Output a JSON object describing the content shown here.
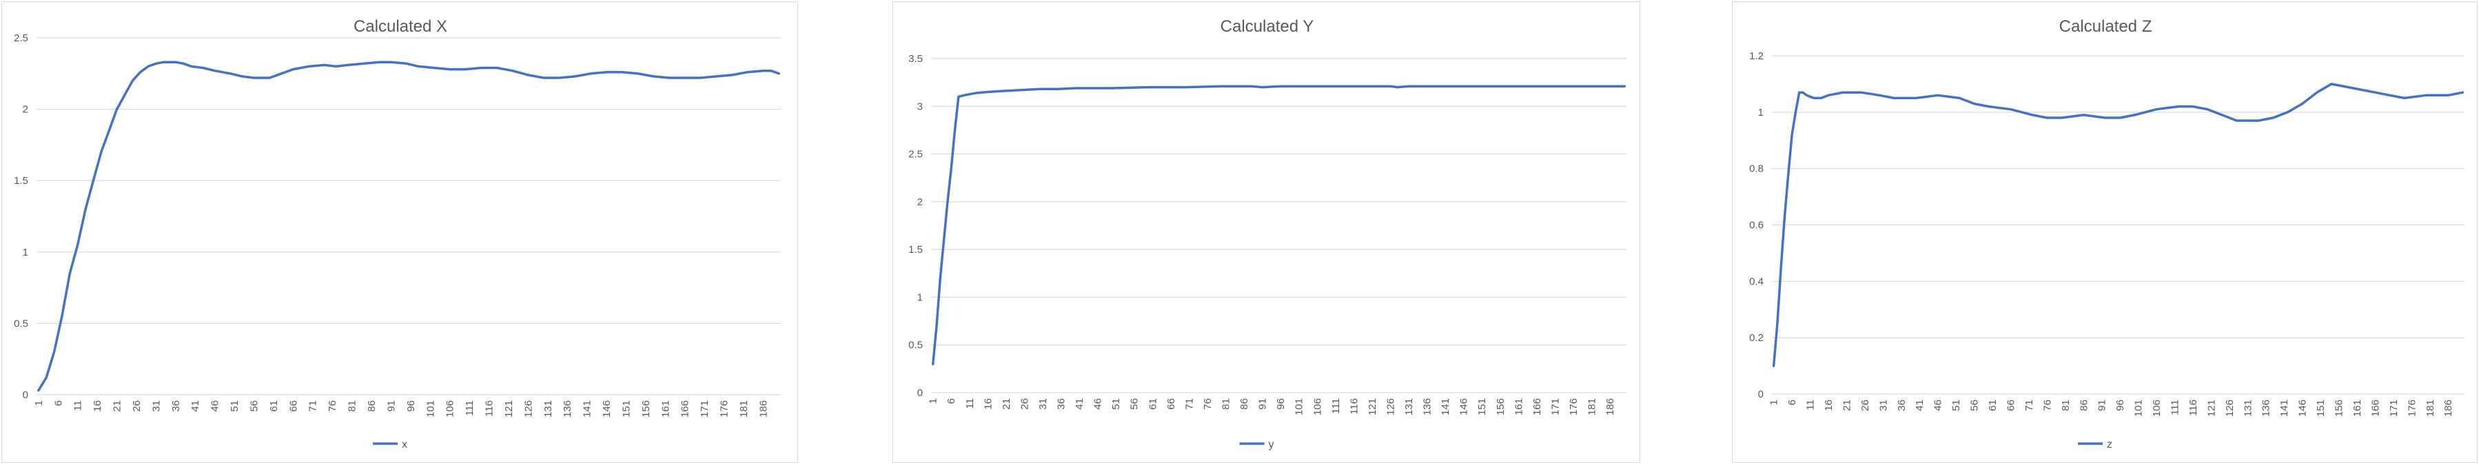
{
  "colors": {
    "series": "#4472c4",
    "grid": "#d9d9d9",
    "text": "#595959"
  },
  "chart_data": [
    {
      "type": "line",
      "title": "Calculated X",
      "legend": {
        "position": "bottom",
        "entries": [
          "x"
        ]
      },
      "ylim": [
        0,
        2.5
      ],
      "y_ticks": [
        "0",
        "0.5",
        "1",
        "1.5",
        "2",
        "2.5"
      ],
      "grid": true,
      "x_count": 190,
      "x_tick_step": 5,
      "series": [
        {
          "name": "x",
          "points": [
            [
              1,
              0.03
            ],
            [
              3,
              0.12
            ],
            [
              5,
              0.3
            ],
            [
              7,
              0.55
            ],
            [
              9,
              0.85
            ],
            [
              11,
              1.05
            ],
            [
              13,
              1.3
            ],
            [
              15,
              1.5
            ],
            [
              17,
              1.7
            ],
            [
              19,
              1.85
            ],
            [
              21,
              2.0
            ],
            [
              23,
              2.1
            ],
            [
              25,
              2.2
            ],
            [
              27,
              2.26
            ],
            [
              29,
              2.3
            ],
            [
              31,
              2.32
            ],
            [
              33,
              2.33
            ],
            [
              36,
              2.33
            ],
            [
              38,
              2.32
            ],
            [
              40,
              2.3
            ],
            [
              43,
              2.29
            ],
            [
              46,
              2.27
            ],
            [
              50,
              2.25
            ],
            [
              53,
              2.23
            ],
            [
              56,
              2.22
            ],
            [
              60,
              2.22
            ],
            [
              63,
              2.25
            ],
            [
              66,
              2.28
            ],
            [
              70,
              2.3
            ],
            [
              74,
              2.31
            ],
            [
              77,
              2.3
            ],
            [
              80,
              2.31
            ],
            [
              84,
              2.32
            ],
            [
              88,
              2.33
            ],
            [
              91,
              2.33
            ],
            [
              95,
              2.32
            ],
            [
              98,
              2.3
            ],
            [
              102,
              2.29
            ],
            [
              106,
              2.28
            ],
            [
              110,
              2.28
            ],
            [
              114,
              2.29
            ],
            [
              118,
              2.29
            ],
            [
              122,
              2.27
            ],
            [
              126,
              2.24
            ],
            [
              130,
              2.22
            ],
            [
              134,
              2.22
            ],
            [
              138,
              2.23
            ],
            [
              142,
              2.25
            ],
            [
              146,
              2.26
            ],
            [
              150,
              2.26
            ],
            [
              154,
              2.25
            ],
            [
              158,
              2.23
            ],
            [
              162,
              2.22
            ],
            [
              166,
              2.22
            ],
            [
              170,
              2.22
            ],
            [
              174,
              2.23
            ],
            [
              178,
              2.24
            ],
            [
              182,
              2.26
            ],
            [
              186,
              2.27
            ],
            [
              188,
              2.27
            ],
            [
              190,
              2.25
            ]
          ]
        }
      ]
    },
    {
      "type": "line",
      "title": "Calculated Y",
      "legend": {
        "position": "bottom",
        "entries": [
          "y"
        ]
      },
      "ylim": [
        0,
        3.5
      ],
      "y_ticks": [
        "0",
        "0.5",
        "1",
        "1.5",
        "2",
        "2.5",
        "3",
        "3.5"
      ],
      "grid": true,
      "x_count": 190,
      "x_tick_step": 5,
      "series": [
        {
          "name": "y",
          "points": [
            [
              1,
              0.3
            ],
            [
              2,
              0.7
            ],
            [
              3,
              1.2
            ],
            [
              4,
              1.6
            ],
            [
              5,
              2.0
            ],
            [
              6,
              2.35
            ],
            [
              7,
              2.75
            ],
            [
              8,
              3.1
            ],
            [
              10,
              3.12
            ],
            [
              13,
              3.14
            ],
            [
              16,
              3.15
            ],
            [
              20,
              3.16
            ],
            [
              25,
              3.17
            ],
            [
              30,
              3.18
            ],
            [
              35,
              3.18
            ],
            [
              40,
              3.19
            ],
            [
              50,
              3.19
            ],
            [
              60,
              3.2
            ],
            [
              70,
              3.2
            ],
            [
              80,
              3.21
            ],
            [
              88,
              3.21
            ],
            [
              91,
              3.2
            ],
            [
              96,
              3.21
            ],
            [
              110,
              3.21
            ],
            [
              126,
              3.21
            ],
            [
              128,
              3.2
            ],
            [
              131,
              3.21
            ],
            [
              150,
              3.21
            ],
            [
              170,
              3.21
            ],
            [
              190,
              3.21
            ]
          ]
        }
      ]
    },
    {
      "type": "line",
      "title": "Calculated Z",
      "legend": {
        "position": "bottom",
        "entries": [
          "z"
        ]
      },
      "ylim": [
        0,
        1.2
      ],
      "y_ticks": [
        "0",
        "0.2",
        "0.4",
        "0.6",
        "0.8",
        "1",
        "1.2"
      ],
      "grid": true,
      "x_count": 190,
      "x_tick_step": 5,
      "series": [
        {
          "name": "z",
          "points": [
            [
              1,
              0.1
            ],
            [
              2,
              0.25
            ],
            [
              3,
              0.45
            ],
            [
              4,
              0.63
            ],
            [
              5,
              0.78
            ],
            [
              6,
              0.92
            ],
            [
              7,
              1.0
            ],
            [
              8,
              1.07
            ],
            [
              9,
              1.07
            ],
            [
              10,
              1.06
            ],
            [
              12,
              1.05
            ],
            [
              14,
              1.05
            ],
            [
              16,
              1.06
            ],
            [
              20,
              1.07
            ],
            [
              25,
              1.07
            ],
            [
              30,
              1.06
            ],
            [
              34,
              1.05
            ],
            [
              40,
              1.05
            ],
            [
              46,
              1.06
            ],
            [
              52,
              1.05
            ],
            [
              56,
              1.03
            ],
            [
              60,
              1.02
            ],
            [
              66,
              1.01
            ],
            [
              72,
              0.99
            ],
            [
              76,
              0.98
            ],
            [
              80,
              0.98
            ],
            [
              86,
              0.99
            ],
            [
              92,
              0.98
            ],
            [
              96,
              0.98
            ],
            [
              100,
              0.99
            ],
            [
              106,
              1.01
            ],
            [
              112,
              1.02
            ],
            [
              116,
              1.02
            ],
            [
              120,
              1.01
            ],
            [
              124,
              0.99
            ],
            [
              128,
              0.97
            ],
            [
              134,
              0.97
            ],
            [
              138,
              0.98
            ],
            [
              142,
              1.0
            ],
            [
              146,
              1.03
            ],
            [
              150,
              1.07
            ],
            [
              154,
              1.1
            ],
            [
              158,
              1.09
            ],
            [
              162,
              1.08
            ],
            [
              166,
              1.07
            ],
            [
              170,
              1.06
            ],
            [
              174,
              1.05
            ],
            [
              180,
              1.06
            ],
            [
              186,
              1.06
            ],
            [
              190,
              1.07
            ]
          ]
        }
      ]
    }
  ]
}
